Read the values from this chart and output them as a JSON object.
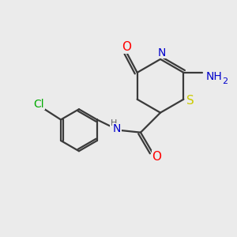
{
  "background_color": "#ebebeb",
  "bond_color": "#3a3a3a",
  "atom_colors": {
    "O": "#ff0000",
    "N": "#0000cc",
    "S": "#cccc00",
    "Cl": "#00aa00",
    "C": "#3a3a3a",
    "H": "#606060"
  },
  "line_width": 1.6,
  "figsize": [
    3.0,
    3.0
  ],
  "dpi": 100,
  "xlim": [
    0,
    10
  ],
  "ylim": [
    0,
    10
  ]
}
